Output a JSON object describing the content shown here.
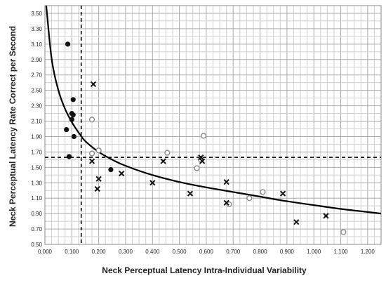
{
  "chart_data": {
    "type": "scatter",
    "xlabel": "Neck Perceptual Latency Intra-Individual Variability",
    "ylabel": "Neck Perceptual Latency Rate Correct per Second",
    "xlim": [
      0,
      1.25
    ],
    "ylim": [
      0.5,
      3.6
    ],
    "x_ticks": [
      "0.000",
      "0.100",
      "0.200",
      "0.300",
      "0.400",
      "0.500",
      "0.600",
      "0.700",
      "0.800",
      "0.900",
      "1.000",
      "1.100",
      "1.200"
    ],
    "y_ticks": [
      "0.50",
      "0.70",
      "0.90",
      "1.10",
      "1.30",
      "1.50",
      "1.70",
      "1.90",
      "2.10",
      "2.30",
      "2.50",
      "2.70",
      "2.90",
      "3.10",
      "3.30",
      "3.50"
    ],
    "grid": true,
    "reference_lines": {
      "x": 0.135,
      "y": 1.63
    },
    "curve": [
      [
        0.005,
        3.6
      ],
      [
        0.02,
        3.05
      ],
      [
        0.03,
        2.8
      ],
      [
        0.05,
        2.5
      ],
      [
        0.07,
        2.3
      ],
      [
        0.09,
        2.15
      ],
      [
        0.11,
        2.03
      ],
      [
        0.13,
        1.93
      ],
      [
        0.15,
        1.84
      ],
      [
        0.2,
        1.7
      ],
      [
        0.25,
        1.6
      ],
      [
        0.3,
        1.52
      ],
      [
        0.4,
        1.4
      ],
      [
        0.5,
        1.31
      ],
      [
        0.6,
        1.24
      ],
      [
        0.7,
        1.18
      ],
      [
        0.8,
        1.12
      ],
      [
        0.9,
        1.06
      ],
      [
        1.0,
        1.01
      ],
      [
        1.1,
        0.96
      ],
      [
        1.2,
        0.92
      ],
      [
        1.25,
        0.9
      ]
    ],
    "series": [
      {
        "marker": "filled-circle",
        "color": "#111111",
        "points": [
          [
            0.085,
            3.1
          ],
          [
            0.105,
            2.38
          ],
          [
            0.1,
            2.2
          ],
          [
            0.105,
            2.18
          ],
          [
            0.1,
            2.12
          ],
          [
            0.08,
            1.99
          ],
          [
            0.108,
            1.9
          ],
          [
            0.09,
            1.64
          ],
          [
            0.245,
            1.47
          ]
        ]
      },
      {
        "marker": "open-circle",
        "color": "#888888",
        "points": [
          [
            0.175,
            2.12
          ],
          [
            0.175,
            1.68
          ],
          [
            0.2,
            1.72
          ],
          [
            0.455,
            1.69
          ],
          [
            0.565,
            1.49
          ],
          [
            0.59,
            1.91
          ],
          [
            0.58,
            1.6
          ],
          [
            0.685,
            1.02
          ],
          [
            0.76,
            1.1
          ],
          [
            0.81,
            1.18
          ],
          [
            1.11,
            0.66
          ]
        ]
      },
      {
        "marker": "x",
        "color": "#111111",
        "points": [
          [
            0.18,
            2.58
          ],
          [
            0.175,
            1.58
          ],
          [
            0.2,
            1.35
          ],
          [
            0.195,
            1.22
          ],
          [
            0.285,
            1.42
          ],
          [
            0.4,
            1.3
          ],
          [
            0.44,
            1.58
          ],
          [
            0.54,
            1.16
          ],
          [
            0.58,
            1.63
          ],
          [
            0.585,
            1.58
          ],
          [
            0.675,
            1.31
          ],
          [
            0.675,
            1.04
          ],
          [
            0.885,
            1.16
          ],
          [
            0.935,
            0.79
          ],
          [
            1.045,
            0.87
          ]
        ]
      }
    ]
  }
}
